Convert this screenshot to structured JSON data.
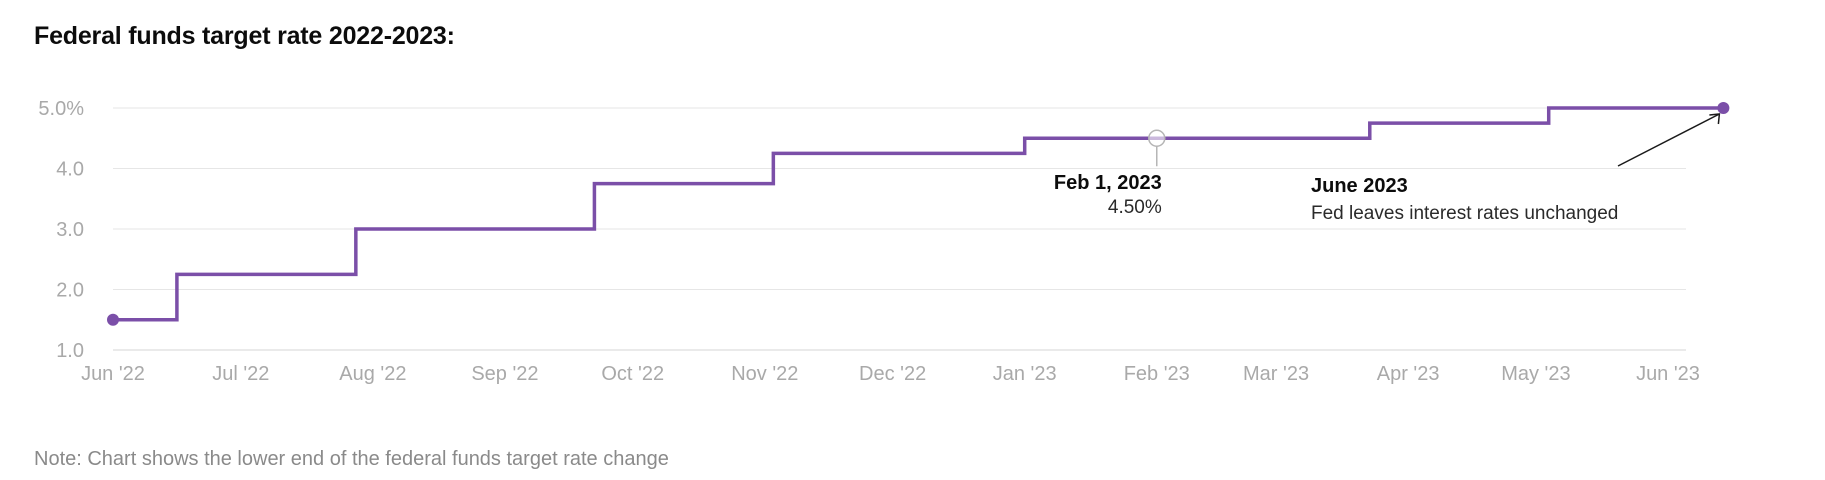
{
  "title": "Federal funds target rate 2022-2023:",
  "note": "Note: Chart shows the lower end of the federal funds target rate change",
  "colors": {
    "line": "#7b4fa8",
    "grid": "#e6e6e6",
    "axis": "#d4d4d4",
    "tick": "#a9a9a9",
    "marker_hollow": "#b5b5b5",
    "arrow": "#1a1a1a"
  },
  "chart_data": {
    "type": "line",
    "step": true,
    "title": "Federal funds target rate 2022-2023:",
    "xlabel": "",
    "ylabel": "",
    "x_ticks": [
      "Jun '22",
      "Jul '22",
      "Aug '22",
      "Sep '22",
      "Oct '22",
      "Nov '22",
      "Dec '22",
      "Jan '23",
      "Feb '23",
      "Mar '23",
      "Apr '23",
      "May '23",
      "Jun '23"
    ],
    "y_ticks": [
      "1.0",
      "2.0",
      "3.0",
      "4.0",
      "5.0%"
    ],
    "y_tick_values": [
      1,
      2,
      3,
      4,
      5
    ],
    "ylim": [
      1,
      5
    ],
    "grid": true,
    "series": [
      {
        "points": [
          {
            "x": "2022-06-01",
            "y": 1.5
          },
          {
            "x": "2022-06-16",
            "y": 2.25
          },
          {
            "x": "2022-07-28",
            "y": 3.0
          },
          {
            "x": "2022-09-22",
            "y": 3.75
          },
          {
            "x": "2022-11-03",
            "y": 4.25
          },
          {
            "x": "2023-01-01",
            "y": 4.5
          },
          {
            "x": "2023-03-23",
            "y": 4.75
          },
          {
            "x": "2023-05-04",
            "y": 5.0
          },
          {
            "x": "2023-06-14",
            "y": 5.0
          }
        ]
      }
    ],
    "annotations": [
      {
        "id": "feb",
        "x": "2023-02-01",
        "y": 4.5,
        "title": "Feb 1, 2023",
        "text": "4.50%"
      },
      {
        "id": "june",
        "x": "2023-06-14",
        "y": 5.0,
        "title": "June 2023",
        "text": "Fed leaves interest rates unchanged"
      }
    ]
  }
}
